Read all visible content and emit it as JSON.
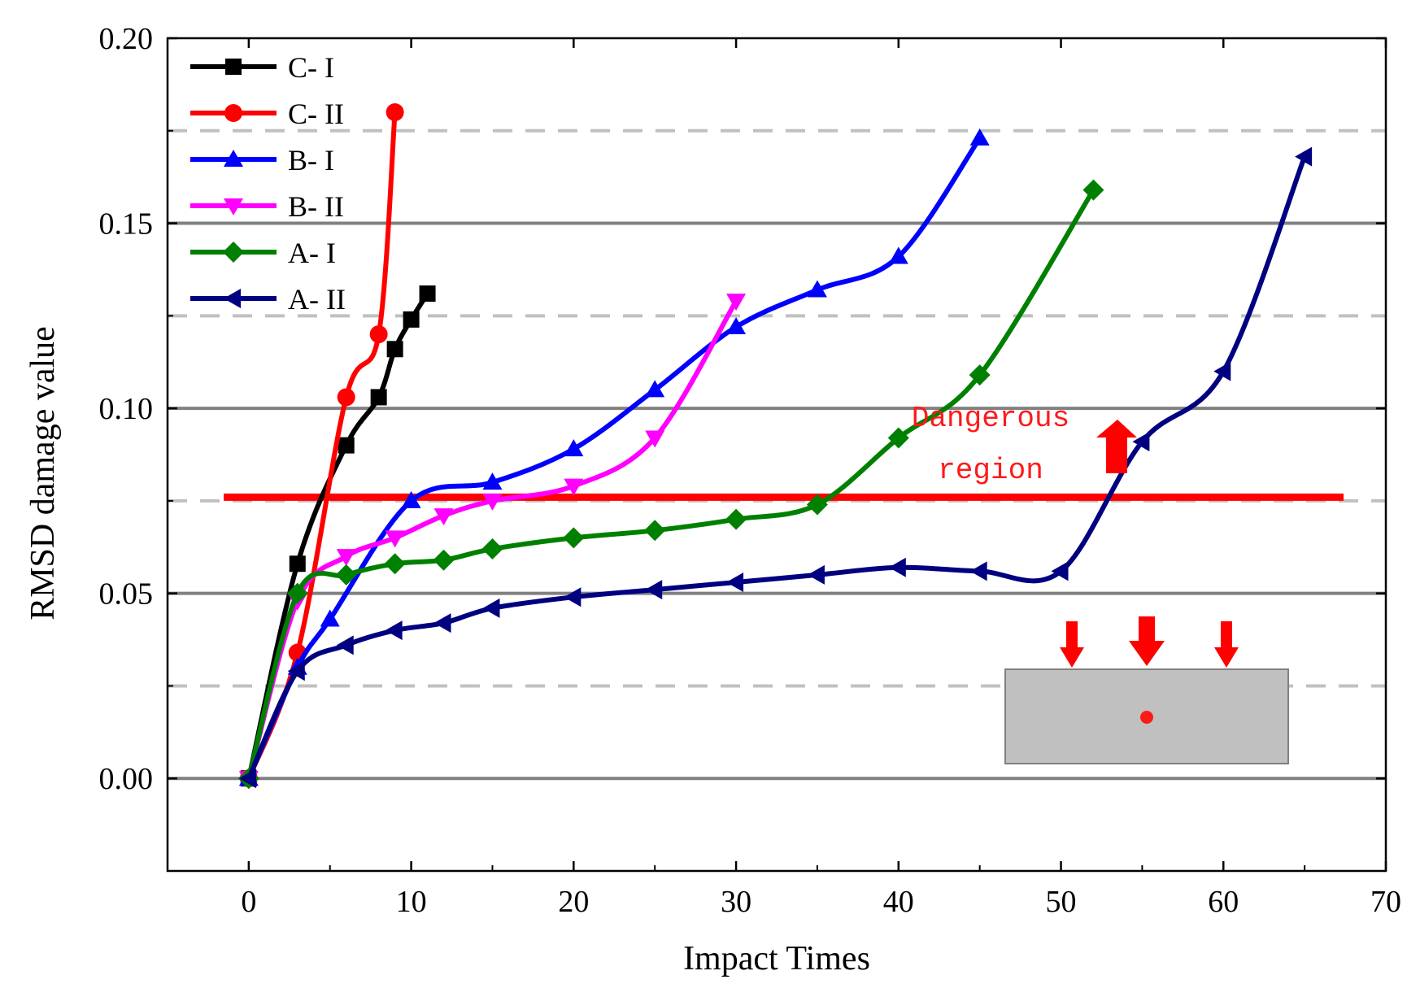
{
  "chart_data": {
    "type": "line",
    "title": "",
    "xlabel": "Impact Times",
    "ylabel": "RMSD damage value",
    "xlim": [
      -5,
      70
    ],
    "ylim": [
      -0.025,
      0.2
    ],
    "xticks": [
      0,
      10,
      20,
      30,
      40,
      50,
      60,
      70
    ],
    "xtick_labels": [
      "0",
      "10",
      "20",
      "30",
      "40",
      "50",
      "60",
      "70"
    ],
    "yticks": [
      0.0,
      0.05,
      0.1,
      0.15,
      0.2
    ],
    "ytick_labels": [
      "0.00",
      "0.05",
      "0.10",
      "0.15",
      "0.20"
    ],
    "gridlines_solid": [
      0.0,
      0.05,
      0.1,
      0.15
    ],
    "gridlines_dashed": [
      0.025,
      0.075,
      0.125,
      0.175
    ],
    "legend_position": "top-left",
    "series": [
      {
        "name": "C- I",
        "color": "#000000",
        "marker": "square",
        "x": [
          0,
          3,
          6,
          8,
          9,
          10,
          11
        ],
        "y": [
          0.0,
          0.058,
          0.09,
          0.103,
          0.116,
          0.124,
          0.131
        ]
      },
      {
        "name": "C- II",
        "color": "#ff0000",
        "marker": "circle",
        "x": [
          0,
          3,
          6,
          8,
          9
        ],
        "y": [
          0.0,
          0.034,
          0.103,
          0.12,
          0.18
        ]
      },
      {
        "name": "B- I",
        "color": "#0000ff",
        "marker": "triangle-up",
        "x": [
          0,
          3,
          5,
          10,
          15,
          20,
          25,
          30,
          35,
          40,
          45
        ],
        "y": [
          0.0,
          0.03,
          0.043,
          0.075,
          0.08,
          0.089,
          0.105,
          0.122,
          0.132,
          0.141,
          0.173
        ]
      },
      {
        "name": "B- II",
        "color": "#ff00ff",
        "marker": "triangle-down",
        "x": [
          0,
          3,
          6,
          9,
          12,
          15,
          20,
          25,
          30
        ],
        "y": [
          0.0,
          0.048,
          0.06,
          0.065,
          0.071,
          0.075,
          0.079,
          0.092,
          0.129
        ]
      },
      {
        "name": "A- I",
        "color": "#008000",
        "marker": "diamond",
        "x": [
          0,
          3,
          6,
          9,
          12,
          15,
          20,
          25,
          30,
          35,
          40,
          45,
          52
        ],
        "y": [
          0.0,
          0.05,
          0.055,
          0.058,
          0.059,
          0.062,
          0.065,
          0.067,
          0.07,
          0.074,
          0.092,
          0.109,
          0.159
        ]
      },
      {
        "name": "A- II",
        "color": "#000080",
        "marker": "triangle-left",
        "x": [
          0,
          3,
          6,
          9,
          12,
          15,
          20,
          25,
          30,
          35,
          40,
          45,
          50,
          55,
          60,
          65
        ],
        "y": [
          0.0,
          0.029,
          0.036,
          0.04,
          0.042,
          0.046,
          0.049,
          0.051,
          0.053,
          0.055,
          0.057,
          0.056,
          0.056,
          0.091,
          0.11,
          0.168
        ]
      }
    ],
    "threshold": {
      "y": 0.076,
      "color": "#ff0000",
      "label_line1": "Dangerous",
      "label_line2": "region"
    }
  }
}
